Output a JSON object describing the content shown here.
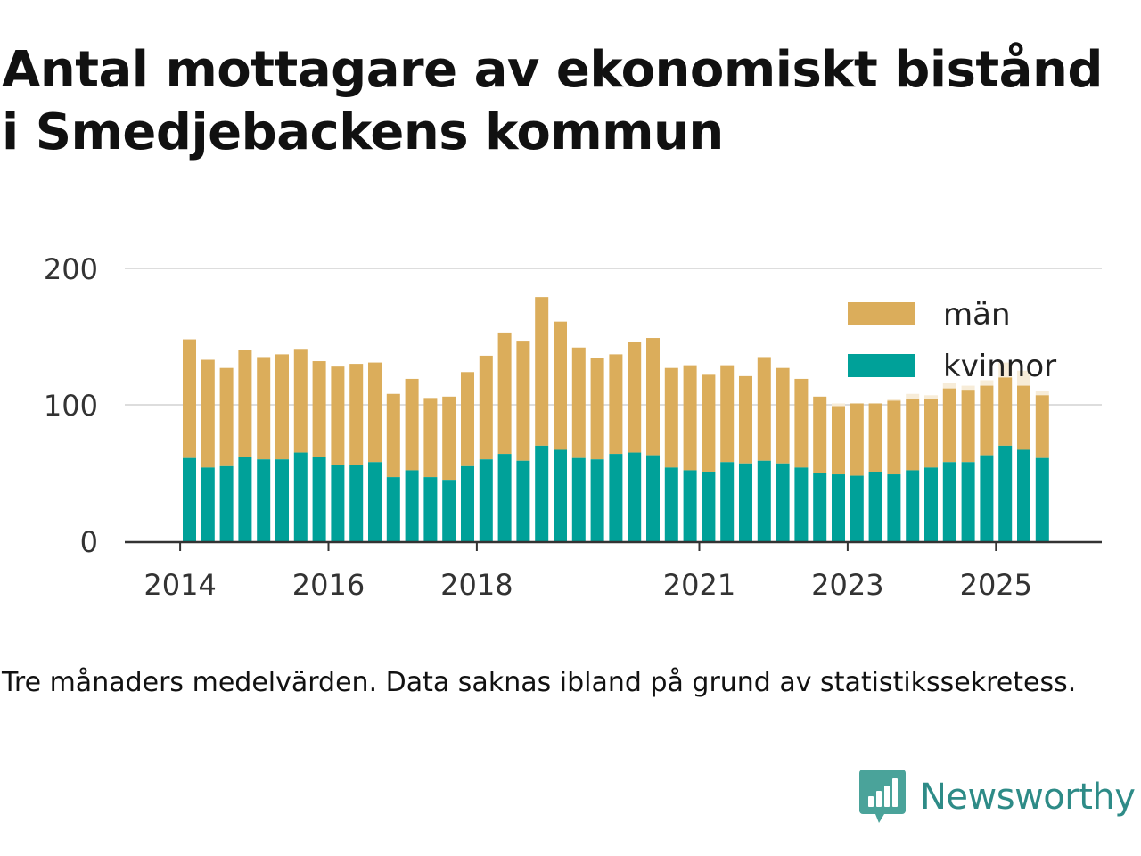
{
  "title_lines": [
    "Antal mottagare av ekonomiskt bistånd",
    "i Smedjebackens kommun"
  ],
  "note": "Tre månaders medelvärden. Data saknas ibland på grund av statistikssekretess.",
  "brand": {
    "name": "Newsworthy",
    "icon": "newsworthy-logo-icon",
    "color": "#2e8b87"
  },
  "chart_data": {
    "type": "bar",
    "stacked": true,
    "title": "Antal mottagare av ekonomiskt bistånd i Smedjebackens kommun",
    "ylim": [
      0,
      200
    ],
    "yticks": [
      0,
      100,
      200
    ],
    "xticks": [
      {
        "label": "2014",
        "index": -1
      },
      {
        "label": "2016",
        "index": 7
      },
      {
        "label": "2018",
        "index": 15
      },
      {
        "label": "2021",
        "index": 27
      },
      {
        "label": "2023",
        "index": 35
      },
      {
        "label": "2025",
        "index": 43
      }
    ],
    "legend": {
      "placement": "top-right",
      "entries": [
        "män",
        "kvinnor"
      ]
    },
    "series": [
      {
        "name": "kvinnor",
        "color": "#00a199",
        "values": [
          61,
          54,
          55,
          62,
          60,
          60,
          65,
          62,
          56,
          56,
          58,
          47,
          52,
          47,
          45,
          55,
          60,
          64,
          59,
          70,
          67,
          61,
          60,
          64,
          65,
          63,
          54,
          52,
          51,
          58,
          57,
          59,
          57,
          54,
          50,
          49,
          48,
          51,
          49,
          52,
          54,
          58,
          58,
          63,
          70,
          67,
          61
        ]
      },
      {
        "name": "män",
        "color": "#dbad5b",
        "values": [
          87,
          79,
          72,
          78,
          75,
          77,
          76,
          70,
          72,
          74,
          73,
          61,
          67,
          58,
          61,
          69,
          76,
          89,
          88,
          109,
          94,
          81,
          74,
          73,
          81,
          86,
          73,
          77,
          71,
          71,
          64,
          76,
          70,
          65,
          56,
          50,
          53,
          50,
          54,
          52,
          50,
          54,
          53,
          51,
          50,
          47,
          46
        ]
      }
    ],
    "faded_overlay": {
      "color": "#f7ecd8",
      "totals": [
        null,
        null,
        null,
        null,
        null,
        null,
        null,
        null,
        null,
        null,
        null,
        null,
        null,
        null,
        null,
        null,
        null,
        null,
        null,
        null,
        null,
        null,
        null,
        null,
        null,
        null,
        null,
        null,
        null,
        null,
        null,
        null,
        null,
        null,
        null,
        101,
        null,
        null,
        104,
        108,
        107,
        116,
        114,
        118,
        131,
        125,
        110
      ]
    }
  }
}
